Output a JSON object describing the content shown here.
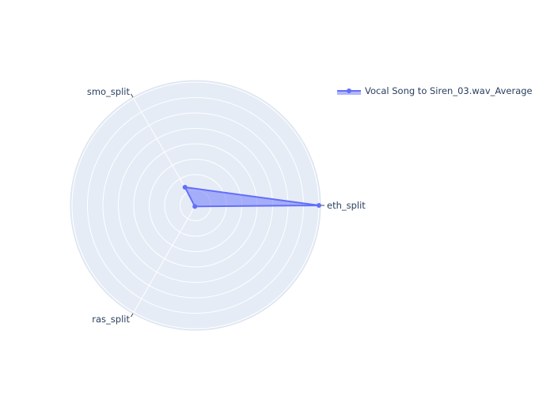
{
  "chart_data": {
    "type": "radar",
    "axes": [
      "eth_split",
      "smo_split",
      "ras_split"
    ],
    "series": [
      {
        "name": "Vocal Song to Siren_03.wav_Average",
        "values": [
          1.0,
          0.17,
          0.01
        ]
      }
    ],
    "r_range": [
      0,
      1.0
    ],
    "grid": true,
    "legend_position": "top-right",
    "colors": {
      "background": "#e5ecf6",
      "grid": "#ffffff",
      "line": "#636efa",
      "fill": "rgba(99,110,250,0.5)",
      "text": "#2a3f5f"
    }
  }
}
